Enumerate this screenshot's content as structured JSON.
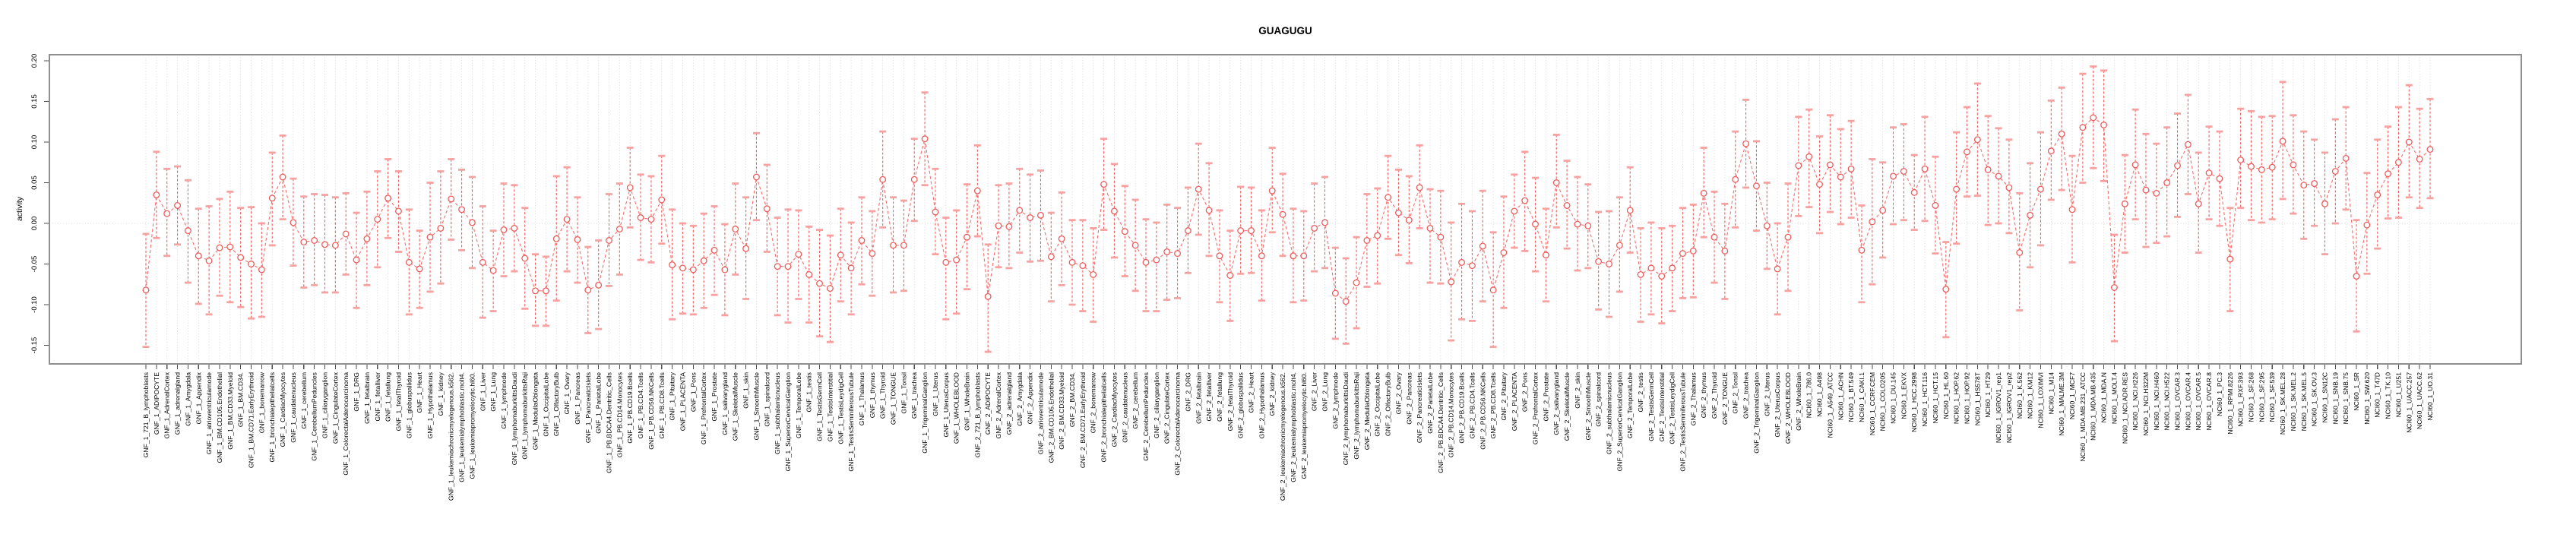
{
  "title": "GUAGUGU",
  "colors": {
    "series_line": "#f36f6f",
    "marker_stroke": "#ef5b5b",
    "error_bar_line": "#f05f5f",
    "error_bar_cap": "#f7a1a1",
    "grid": "#d4d4d4",
    "zero_line": "#d4d4d4",
    "box_border": "#8f8f8f",
    "tick": "#4d4d4d",
    "text": "#000000",
    "background": "#ffffff"
  },
  "chart_data": {
    "type": "line",
    "subtype": "points-with-error-bars",
    "title": "GUAGUGU",
    "xlabel": "",
    "ylabel": "activity",
    "ylim": [
      -0.175,
      0.205
    ],
    "y_ticks": [
      0.2,
      0.15,
      0.1,
      0.05,
      0.0,
      -0.05,
      -0.1,
      -0.15
    ],
    "y_tick_labels": [
      "0.20",
      "0.15",
      "0.10",
      "0.05",
      "0.00",
      "-0.05",
      "-0.10",
      "-0.15"
    ],
    "legend_position": "none",
    "grid": "vertical dotted line at every category; dotted horizontal line at 0",
    "marker": "open-circle",
    "line_style": "dashed",
    "categories": [
      "GNF_1_721_B_lymphoblasts",
      "GNF_1_ADIPOCYTE",
      "GNF_1_AdrenalCortex",
      "GNF_1_adrenalgland",
      "GNF_1_Amygdala",
      "GNF_1_Appendix",
      "GNF_1_atrioventricularnode",
      "GNF_1_BM.CD105.Endothelial",
      "GNF_1_BM.CD33.Myeloid",
      "GNF_1_BM.CD34.",
      "GNF_1_BM.CD71.EarlyErythroid",
      "GNF_1_bonemarrow",
      "GNF_1_bronchialepithelialcells",
      "GNF_1_CardiacMyocytes",
      "GNF_1_caudatenucleus",
      "GNF_1_cerebellum",
      "GNF_1_CerebellumPeduncles",
      "GNF_1_ciliaryganglion",
      "GNF_1_CingulateCortex",
      "GNF_1_ColorectalAdenocarcinoma",
      "GNF_1_DRG",
      "GNF_1_fetalbrain",
      "GNF_1_fetalliver",
      "GNF_1_fetallung",
      "GNF_1_fetalThyroid",
      "GNF_1_globuspallidus",
      "GNF_1_Heart",
      "GNF_1_Hypothalamus",
      "GNF_1_kidney",
      "GNF_1_leukemiachronicmyelogenous.k562.",
      "GNF_1_leukemialymphoblastic.molt4.",
      "GNF_1_leukemiapromyelocytic.hl60.",
      "GNF_1_Liver",
      "GNF_1_Lung",
      "GNF_1_lymphnode",
      "GNF_1_lymphomaburkittsDaudi",
      "GNF_1_lymphomaburkittsRaji",
      "GNF_1_MedullaOblongata",
      "GNF_1_OccipitalLobe",
      "GNF_1_OlfactoryBulb",
      "GNF_1_Ovary",
      "GNF_1_Pancreas",
      "GNF_1_PancreaticIslets",
      "GNF_1_ParietalLobe",
      "GNF_1_PB.BDCA4.Dentritic_Cells",
      "GNF_1_PB.CD14.Monocytes",
      "GNF_1_PB.CD19.Bcells",
      "GNF_1_PB.CD4.Tcells",
      "GNF_1_PB.CD56.NKCells",
      "GNF_1_PB.CD8.Tcells",
      "GNF_1_Pituitary",
      "GNF_1_PLACENTA",
      "GNF_1_Pons",
      "GNF_1_PrefrontalCortex",
      "GNF_1_Prostate",
      "GNF_1_salivarygland",
      "GNF_1_SkeletalMuscle",
      "GNF_1_skin",
      "GNF_1_SmoothMuscle",
      "GNF_1_spinalcord",
      "GNF_1_subthalamicnucleus",
      "GNF_1_SuperiorCervicalGanglion",
      "GNF_1_TemporalLobe",
      "GNF_1_testis",
      "GNF_1_TestisGermCell",
      "GNF_1_TestisInterstitial",
      "GNF_1_TestisLeydigCell",
      "GNF_1_TestisSeminiferousTubule",
      "GNF_1_Thalamus",
      "GNF_1_thymus",
      "GNF_1_Thyroid",
      "GNF_1_TONGUE",
      "GNF_1_Tonsil",
      "GNF_1_trachea",
      "GNF_1_TrigeminalGanglion",
      "GNF_1_Uterus",
      "GNF_1_UterusCorpus",
      "GNF_1_WHOLEBLOOD",
      "GNF_1_WholeBrain",
      "GNF_2_721_B_lymphoblasts",
      "GNF_2_ADIPOCYTE",
      "GNF_2_AdrenalCortex",
      "GNF_2_adrenalgland",
      "GNF_2_Amygdala",
      "GNF_2_Appendix",
      "GNF_2_atrioventricularnode",
      "GNF_2_BM.CD105.Endothelial",
      "GNF_2_BM.CD33.Myeloid",
      "GNF_2_BM.CD34.",
      "GNF_2_BM.CD71.EarlyErythroid",
      "GNF_2_bonemarrow",
      "GNF_2_bronchialepithelialcells",
      "GNF_2_CardiacMyocytes",
      "GNF_2_caudatenucleus",
      "GNF_2_cerebellum",
      "GNF_2_CerebellumPeduncles",
      "GNF_2_ciliaryganglion",
      "GNF_2_CingulateCortex",
      "GNF_2_ColorectalAdenocarcinoma",
      "GNF_2_DRG",
      "GNF_2_fetalbrain",
      "GNF_2_fetalliver",
      "GNF_2_fetallung",
      "GNF_2_fetalThyroid",
      "GNF_2_globuspallidus",
      "GNF_2_Heart",
      "GNF_2_Hypothalamus",
      "GNF_2_kidney",
      "GNF_2_leukemiachronicmyelogenous.k562.",
      "GNF_2_leukemialymphoblastic.molt4.",
      "GNF_2_leukemiapromyelocytic.hl60.",
      "GNF_2_Liver",
      "GNF_2_Lung",
      "GNF_2_lymphnode",
      "GNF_2_lymphomaburkittsDaudi",
      "GNF_2_lymphomaburkittsRaji",
      "GNF_2_MedullaOblongata",
      "GNF_2_OccipitalLobe",
      "GNF_2_OlfactoryBulb",
      "GNF_2_Ovary",
      "GNF_2_Pancreas",
      "GNF_2_PancreaticIslets",
      "GNF_2_ParietalLobe",
      "GNF_2_PB.BDCA4.Dentritic_Cells",
      "GNF_2_PB.CD14.Monocytes",
      "GNF_2_PB.CD19.Bcells",
      "GNF_2_PB.CD4.Tcells",
      "GNF_2_PB.CD56.NKCells",
      "GNF_2_PB.CD8.Tcells",
      "GNF_2_Pituitary",
      "GNF_2_PLACENTA",
      "GNF_2_Pons",
      "GNF_2_PrefrontalCortex",
      "GNF_2_Prostate",
      "GNF_2_salivarygland",
      "GNF_2_SkeletalMuscle",
      "GNF_2_skin",
      "GNF_2_SmoothMuscle",
      "GNF_2_spinalcord",
      "GNF_2_subthalamicnucleus",
      "GNF_2_SuperiorCervicalGanglion",
      "GNF_2_TemporalLobe",
      "GNF_2_testis",
      "GNF_2_TestisGermCell",
      "GNF_2_TestisInterstitial",
      "GNF_2_TestisLeydigCell",
      "GNF_2_TestisSeminiferousTubule",
      "GNF_2_Thalamus",
      "GNF_2_thymus",
      "GNF_2_Thyroid",
      "GNF_2_TONGUE",
      "GNF_2_Tonsil",
      "GNF_2_trachea",
      "GNF_2_TrigeminalGanglion",
      "GNF_2_Uterus",
      "GNF_2_UterusCorpus",
      "GNF_2_WHOLEBLOOD",
      "GNF_2_WholeBrain",
      "NCI60_1_786.0",
      "NCI60_1_A498",
      "NCI60_1_A549_ATCC",
      "NCI60_1_ACHN",
      "NCI60_1_BT.549",
      "NCI60_1_CAKI.1",
      "NCI60_1_CCRF.CEM",
      "NCI60_1_COLO205",
      "NCI60_1_DU.145",
      "NCI60_1_EKVX",
      "NCI60_1_HCC.2998",
      "NCI60_1_HCT.116",
      "NCI60_1_HCT.15",
      "NCI60_1_HL.60",
      "NCI60_1_HOP.62",
      "NCI60_1_HOP.92",
      "NCI60_1_HS578T",
      "NCI60_1_HT29",
      "NCI60_1_IGROV1_rep1",
      "NCI60_1_IGROV1_rep2",
      "NCI60_1_K.562",
      "NCI60_1_KM12",
      "NCI60_1_LOXIMVI",
      "NCI60_1_M14",
      "NCI60_1_MALME.3M",
      "NCI60_1_MCF7",
      "NCI60_1_MDA.MB.231_ATCC",
      "NCI60_1_MDA.MB.435",
      "NCI60_1_MDA.N",
      "NCI60_1_MOLT.4",
      "NCI60_1_NCI.ADR.RES",
      "NCI60_1_NCI.H226",
      "NCI60_1_NCI.H322M",
      "NCI60_1_NCI.H460",
      "NCI60_1_NCI.H522",
      "NCI60_1_OVCAR.3",
      "NCI60_1_OVCAR.4",
      "NCI60_1_OVCAR.5",
      "NCI60_1_OVCAR.8",
      "NCI60_1_PC.3",
      "NCI60_1_RPMI.8226",
      "NCI60_1_RXF.393",
      "NCI60_1_SF.268",
      "NCI60_1_SF.295",
      "NCI60_1_SF.539",
      "NCI60_1_SK.MEL.28",
      "NCI60_1_SK.MEL.2",
      "NCI60_1_SK.MEL.5",
      "NCI60_1_SK.OV.3",
      "NCI60_1_SN12C",
      "NCI60_1_SNB.19",
      "NCI60_1_SNB.75",
      "NCI60_1_SR",
      "NCI60_1_SW.620",
      "NCI60_1_T47D",
      "NCI60_1_TK.10",
      "NCI60_1_U251",
      "NCI60_1_UACC.257",
      "NCI60_1_UACC.62",
      "NCI60_1_UO.31"
    ],
    "series": [
      {
        "name": "activity",
        "values": [
          -0.082,
          0.035,
          0.012,
          0.022,
          -0.009,
          -0.04,
          -0.046,
          -0.03,
          -0.029,
          -0.042,
          -0.05,
          -0.057,
          0.031,
          0.057,
          0.001,
          -0.023,
          -0.021,
          -0.026,
          -0.027,
          -0.013,
          -0.045,
          -0.019,
          0.005,
          0.031,
          0.015,
          -0.048,
          -0.056,
          -0.017,
          -0.006,
          0.03,
          0.017,
          0.001,
          -0.048,
          -0.058,
          -0.008,
          -0.006,
          -0.043,
          -0.083,
          -0.083,
          -0.019,
          0.005,
          -0.02,
          -0.082,
          -0.076,
          -0.021,
          -0.007,
          0.044,
          0.007,
          0.005,
          0.029,
          -0.051,
          -0.055,
          -0.057,
          -0.046,
          -0.033,
          -0.057,
          -0.007,
          -0.031,
          0.057,
          0.018,
          -0.053,
          -0.053,
          -0.038,
          -0.063,
          -0.074,
          -0.08,
          -0.039,
          -0.055,
          -0.021,
          -0.037,
          0.054,
          -0.027,
          -0.027,
          0.054,
          0.104,
          0.014,
          -0.048,
          -0.045,
          -0.017,
          0.04,
          -0.09,
          -0.003,
          -0.004,
          0.016,
          0.007,
          0.01,
          -0.041,
          -0.019,
          -0.048,
          -0.052,
          -0.063,
          0.048,
          0.015,
          -0.01,
          -0.027,
          -0.048,
          -0.045,
          -0.035,
          -0.037,
          -0.009,
          0.042,
          0.016,
          -0.04,
          -0.064,
          -0.009,
          -0.009,
          -0.04,
          0.04,
          0.011,
          -0.04,
          -0.04,
          -0.006,
          0.001,
          -0.086,
          -0.096,
          -0.073,
          -0.021,
          -0.015,
          0.032,
          0.013,
          0.004,
          0.044,
          -0.006,
          -0.017,
          -0.072,
          -0.048,
          -0.052,
          -0.028,
          -0.082,
          -0.036,
          0.015,
          0.028,
          -0.001,
          -0.039,
          0.05,
          0.022,
          -0.001,
          -0.003,
          -0.047,
          -0.05,
          -0.027,
          0.016,
          -0.063,
          -0.055,
          -0.065,
          -0.055,
          -0.037,
          -0.034,
          0.037,
          -0.017,
          -0.034,
          0.054,
          0.098,
          0.046,
          -0.003,
          -0.056,
          -0.017,
          0.071,
          0.082,
          0.048,
          0.072,
          0.057,
          0.067,
          -0.033,
          0.002,
          0.016,
          0.058,
          0.064,
          0.038,
          0.067,
          0.022,
          -0.081,
          0.042,
          0.088,
          0.103,
          0.066,
          0.058,
          0.044,
          -0.036,
          0.01,
          0.042,
          0.089,
          0.11,
          0.017,
          0.118,
          0.13,
          0.121,
          -0.079,
          0.024,
          0.072,
          0.041,
          0.037,
          0.05,
          0.071,
          0.097,
          0.024,
          0.062,
          0.055,
          -0.044,
          0.078,
          0.07,
          0.066,
          0.069,
          0.101,
          0.072,
          0.047,
          0.049,
          0.024,
          0.064,
          0.08,
          -0.065,
          -0.002,
          0.035,
          0.061,
          0.075,
          0.1,
          0.079,
          0.091
        ]
      }
    ],
    "error_low": [
      -0.152,
      -0.018,
      -0.04,
      -0.026,
      -0.073,
      -0.099,
      -0.112,
      -0.089,
      -0.097,
      -0.103,
      -0.117,
      -0.115,
      -0.027,
      0.005,
      -0.052,
      -0.079,
      -0.076,
      -0.085,
      -0.085,
      -0.063,
      -0.104,
      -0.076,
      -0.054,
      -0.018,
      -0.035,
      -0.112,
      -0.104,
      -0.084,
      -0.074,
      -0.02,
      -0.033,
      -0.055,
      -0.116,
      -0.108,
      -0.065,
      -0.059,
      -0.105,
      -0.126,
      -0.126,
      -0.095,
      -0.059,
      -0.073,
      -0.135,
      -0.13,
      -0.077,
      -0.063,
      -0.005,
      -0.045,
      -0.048,
      -0.025,
      -0.118,
      -0.111,
      -0.112,
      -0.104,
      -0.088,
      -0.113,
      -0.063,
      -0.093,
      0.004,
      -0.035,
      -0.113,
      -0.122,
      -0.093,
      -0.122,
      -0.139,
      -0.146,
      -0.096,
      -0.112,
      -0.075,
      -0.089,
      -0.005,
      -0.085,
      -0.083,
      0.003,
      0.047,
      -0.038,
      -0.118,
      -0.111,
      -0.081,
      -0.016,
      -0.158,
      -0.054,
      -0.055,
      -0.036,
      -0.047,
      -0.046,
      -0.096,
      -0.076,
      -0.1,
      -0.108,
      -0.121,
      -0.008,
      -0.042,
      -0.065,
      -0.083,
      -0.108,
      -0.108,
      -0.094,
      -0.092,
      -0.061,
      -0.014,
      -0.04,
      -0.097,
      -0.12,
      -0.062,
      -0.061,
      -0.095,
      -0.011,
      -0.04,
      -0.097,
      -0.095,
      -0.059,
      -0.055,
      -0.142,
      -0.148,
      -0.129,
      -0.078,
      -0.074,
      -0.019,
      -0.039,
      -0.049,
      -0.006,
      -0.073,
      -0.074,
      -0.144,
      -0.118,
      -0.12,
      -0.096,
      -0.152,
      -0.104,
      -0.03,
      -0.034,
      -0.059,
      -0.096,
      -0.005,
      -0.031,
      -0.058,
      -0.055,
      -0.106,
      -0.115,
      -0.084,
      -0.036,
      -0.121,
      -0.112,
      -0.123,
      -0.108,
      -0.092,
      -0.091,
      -0.017,
      -0.073,
      -0.093,
      -0.005,
      0.044,
      -0.009,
      -0.056,
      -0.112,
      -0.083,
      0.009,
      0.02,
      -0.012,
      0.014,
      -0.001,
      0.007,
      -0.097,
      -0.075,
      -0.042,
      -0.001,
      0.004,
      -0.008,
      0.003,
      -0.037,
      -0.14,
      -0.025,
      0.033,
      0.034,
      -0.002,
      0.0,
      -0.012,
      -0.107,
      -0.054,
      -0.027,
      0.029,
      0.041,
      -0.048,
      0.05,
      0.068,
      0.052,
      -0.145,
      -0.036,
      0.005,
      -0.029,
      -0.024,
      -0.016,
      0.008,
      0.036,
      -0.036,
      0.005,
      -0.003,
      -0.108,
      0.019,
      0.004,
      0.001,
      0.005,
      0.03,
      0.012,
      -0.019,
      -0.003,
      -0.038,
      0.0,
      0.017,
      -0.133,
      -0.062,
      -0.031,
      0.006,
      0.007,
      0.032,
      0.019,
      0.031
    ],
    "error_high": [
      -0.013,
      0.088,
      0.067,
      0.07,
      0.053,
      0.018,
      0.021,
      0.03,
      0.039,
      0.019,
      0.02,
      0.0,
      0.087,
      0.108,
      0.055,
      0.033,
      0.036,
      0.035,
      0.032,
      0.037,
      0.013,
      0.039,
      0.064,
      0.079,
      0.064,
      0.017,
      -0.009,
      0.05,
      0.064,
      0.079,
      0.066,
      0.057,
      0.021,
      -0.009,
      0.049,
      0.047,
      0.019,
      -0.038,
      -0.041,
      0.058,
      0.069,
      0.032,
      -0.029,
      -0.021,
      0.036,
      0.049,
      0.093,
      0.06,
      0.058,
      0.083,
      0.017,
      0.0,
      -0.003,
      0.012,
      0.021,
      -0.001,
      0.049,
      0.032,
      0.111,
      0.072,
      0.007,
      0.017,
      0.016,
      -0.004,
      -0.008,
      -0.015,
      0.018,
      0.001,
      0.032,
      0.015,
      0.113,
      0.032,
      0.028,
      0.104,
      0.161,
      0.067,
      0.007,
      0.016,
      0.048,
      0.096,
      -0.026,
      0.047,
      0.049,
      0.067,
      0.06,
      0.065,
      0.013,
      0.038,
      0.004,
      0.004,
      -0.006,
      0.104,
      0.073,
      0.046,
      0.029,
      0.005,
      0.001,
      0.023,
      0.019,
      0.044,
      0.098,
      0.074,
      0.016,
      -0.009,
      0.045,
      0.044,
      0.016,
      0.093,
      0.061,
      0.018,
      0.015,
      0.049,
      0.057,
      -0.03,
      -0.043,
      -0.017,
      0.036,
      0.043,
      0.083,
      0.066,
      0.058,
      0.096,
      0.042,
      0.04,
      0.001,
      0.024,
      0.015,
      0.04,
      -0.011,
      0.033,
      0.06,
      0.088,
      0.056,
      0.018,
      0.109,
      0.077,
      0.057,
      0.048,
      0.014,
      0.015,
      0.032,
      0.069,
      -0.006,
      0.001,
      -0.006,
      -0.003,
      0.019,
      0.023,
      0.093,
      0.039,
      0.024,
      0.113,
      0.152,
      0.101,
      0.05,
      0.0,
      0.049,
      0.131,
      0.14,
      0.107,
      0.133,
      0.116,
      0.126,
      0.022,
      0.079,
      0.075,
      0.118,
      0.122,
      0.084,
      0.131,
      0.082,
      -0.023,
      0.112,
      0.143,
      0.172,
      0.132,
      0.117,
      0.103,
      0.037,
      0.074,
      0.112,
      0.151,
      0.167,
      0.083,
      0.184,
      0.193,
      0.188,
      -0.014,
      0.084,
      0.14,
      0.11,
      0.098,
      0.118,
      0.135,
      0.158,
      0.087,
      0.119,
      0.113,
      0.019,
      0.141,
      0.138,
      0.131,
      0.132,
      0.174,
      0.133,
      0.113,
      0.103,
      0.087,
      0.128,
      0.143,
      0.004,
      0.062,
      0.103,
      0.119,
      0.143,
      0.17,
      0.141,
      0.153
    ]
  }
}
